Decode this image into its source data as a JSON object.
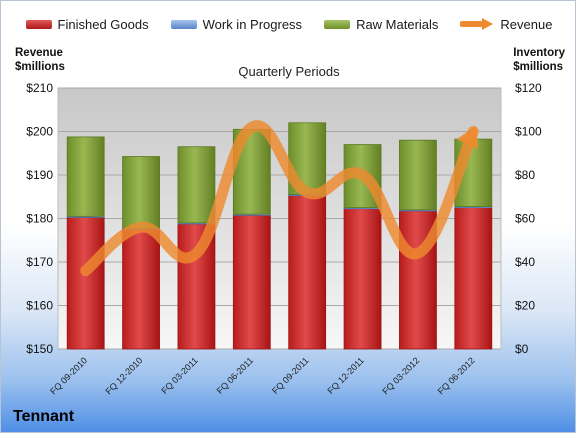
{
  "brand": "Tennant",
  "colors": {
    "finished_goods": "#d12a2a",
    "work_in_progress": "#7aa3e0",
    "raw_materials": "#86a83c",
    "revenue": "#ee8a2f"
  },
  "legend": [
    {
      "label": "Finished Goods",
      "key": "finished_goods"
    },
    {
      "label": "Work in Progress",
      "key": "work_in_progress"
    },
    {
      "label": "Raw Materials",
      "key": "raw_materials"
    },
    {
      "label": "Revenue",
      "key": "revenue"
    }
  ],
  "chart_data": {
    "type": "bar",
    "stacked": true,
    "title": "",
    "xlabel": "Quarterly Periods",
    "ylabel_left": "Revenue\n$millions",
    "ylabel_right": "Inventory\n$millions",
    "ylim_left": [
      150,
      210
    ],
    "yticks_left": [
      "$150",
      "$160",
      "$170",
      "$180",
      "$190",
      "$200",
      "$210"
    ],
    "ylim_right": [
      0,
      120
    ],
    "yticks_right": [
      "$0",
      "$20",
      "$40",
      "$60",
      "$80",
      "$100",
      "$120"
    ],
    "grid": true,
    "legend_position": "top",
    "categories": [
      "FQ 09-2010",
      "FQ 12-2010",
      "FQ 03-2011",
      "FQ 06-2011",
      "FQ 09-2011",
      "FQ 12-2011",
      "FQ 03-2012",
      "FQ 06-2012"
    ],
    "series": [
      {
        "name": "Finished Goods",
        "axis": "right",
        "type": "bar",
        "values": [
          60.5,
          55.0,
          57.5,
          61.5,
          70.5,
          64.5,
          63.5,
          65.0
        ]
      },
      {
        "name": "Work in Progress",
        "axis": "right",
        "type": "bar",
        "values": [
          0.5,
          0.5,
          0.5,
          0.5,
          0.5,
          0.5,
          0.5,
          0.5
        ]
      },
      {
        "name": "Raw Materials",
        "axis": "right",
        "type": "bar",
        "values": [
          36.5,
          33.0,
          35.0,
          39.0,
          33.0,
          29.0,
          32.0,
          31.0
        ]
      },
      {
        "name": "Revenue",
        "axis": "left",
        "type": "line",
        "values": [
          168,
          178,
          172,
          201,
          186,
          190,
          172,
          200
        ]
      }
    ]
  }
}
